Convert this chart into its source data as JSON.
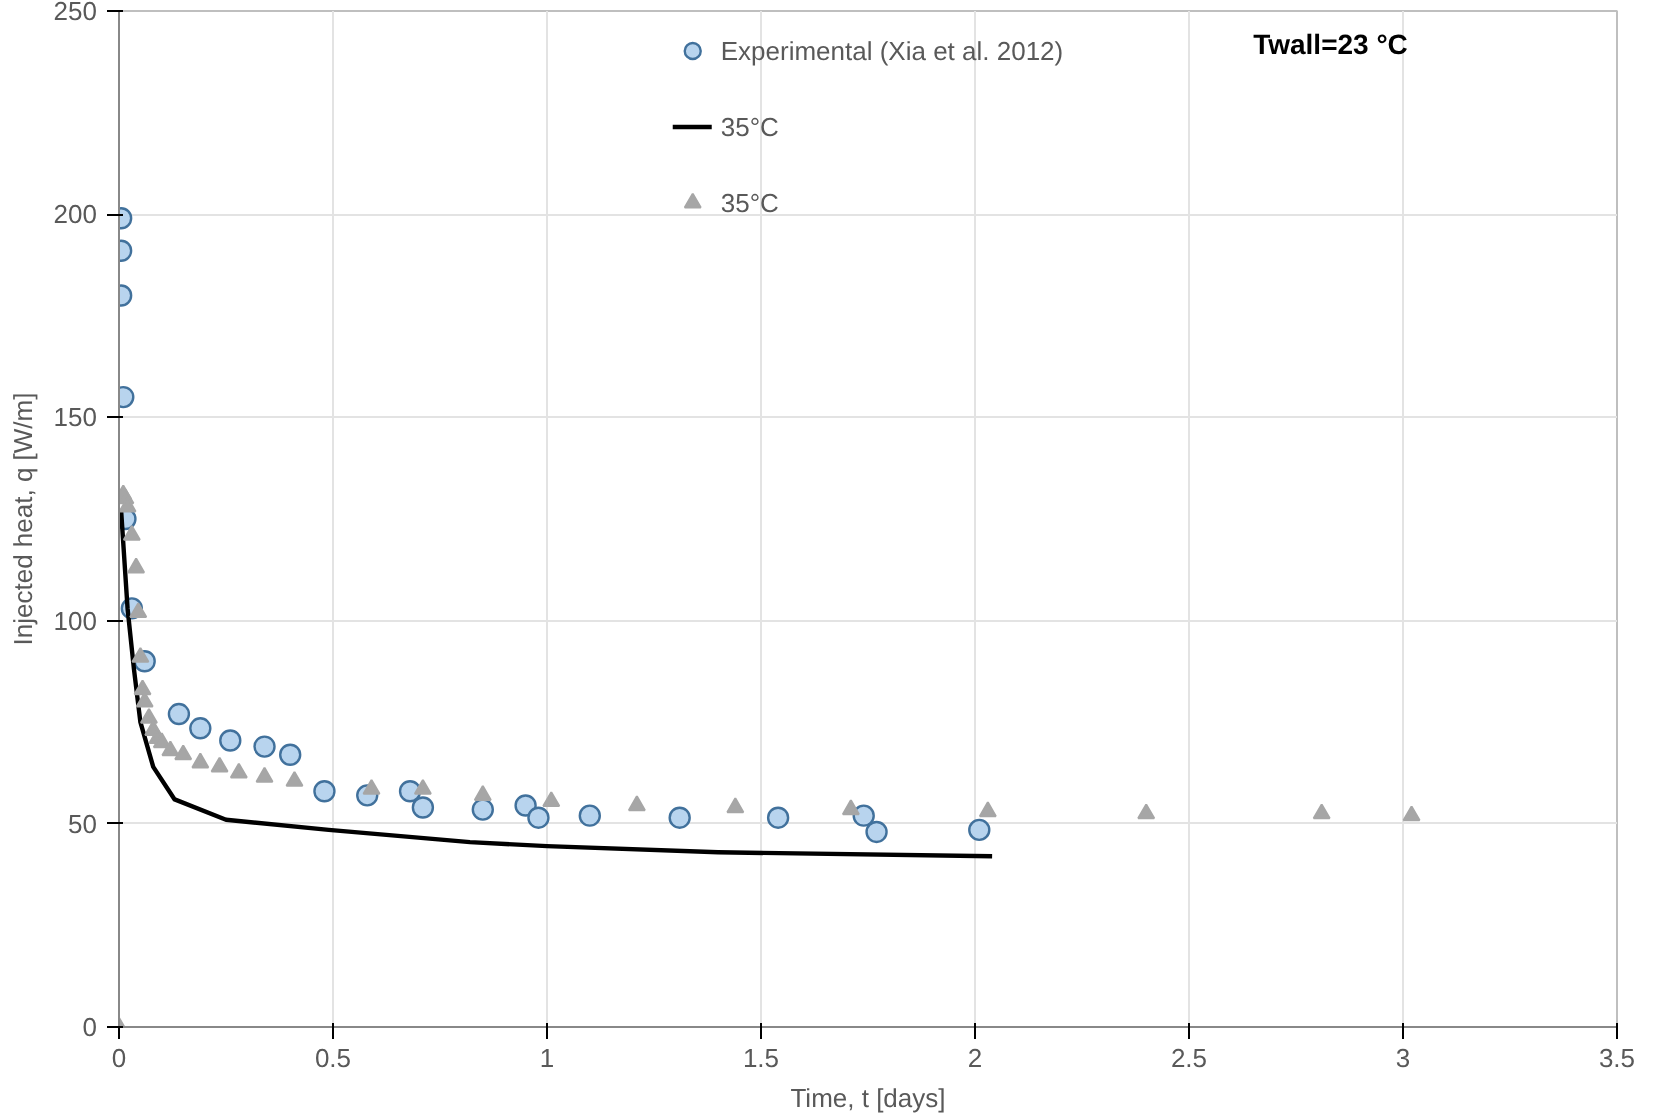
{
  "chart_data": {
    "type": "scatter",
    "xlabel": "Time, t [days]",
    "ylabel": "Injected heat, q [W/m]",
    "annotations": [
      "Twall=23 °C"
    ],
    "xlim": [
      0,
      3.5
    ],
    "ylim": [
      0,
      250
    ],
    "xticks": [
      0,
      0.5,
      1,
      1.5,
      2,
      2.5,
      3,
      3.5
    ],
    "yticks": [
      0,
      50,
      100,
      150,
      200,
      250
    ],
    "grid": true,
    "legend": "top",
    "series": [
      {
        "name": "Experimental (Xia et al. 2012)",
        "marker": "circle",
        "color": "#b8d4ee",
        "x": [
          0.005,
          0.005,
          0.005,
          0.01,
          0.015,
          0.03,
          0.06,
          0.14,
          0.19,
          0.26,
          0.34,
          0.4,
          0.48,
          0.58,
          0.68,
          0.71,
          0.85,
          0.95,
          0.98,
          1.1,
          1.31,
          1.54,
          1.74,
          1.77,
          2.01
        ],
        "values": [
          199,
          191,
          180,
          155,
          125,
          103,
          90,
          77,
          73.5,
          70.5,
          69,
          67,
          58,
          57,
          58,
          54,
          53.5,
          54.5,
          51.5,
          52,
          51.5,
          51.5,
          52,
          48,
          48.5
        ]
      },
      {
        "name": "35°C",
        "type": "line",
        "marker": "none",
        "line_style": "solid",
        "color": "#000000",
        "x": [
          0.005,
          0.02,
          0.035,
          0.05,
          0.08,
          0.13,
          0.25,
          0.49,
          0.82,
          1.0,
          1.4,
          2.04
        ],
        "values": [
          127,
          103,
          88,
          75,
          64,
          56,
          51,
          48.5,
          45.5,
          44.5,
          43,
          42
        ]
      },
      {
        "name": "35°C",
        "marker": "triangle",
        "color": "#a6a6a6",
        "x": [
          0,
          0.01,
          0.015,
          0.02,
          0.03,
          0.04,
          0.045,
          0.05,
          0.055,
          0.06,
          0.07,
          0.08,
          0.09,
          0.1,
          0.12,
          0.15,
          0.19,
          0.235,
          0.28,
          0.34,
          0.41,
          0.59,
          0.71,
          0.85,
          1.01,
          1.21,
          1.44,
          1.71,
          2.03,
          2.4,
          2.81,
          3.02
        ],
        "values": [
          0,
          131,
          130,
          128,
          121,
          113,
          102,
          91,
          83,
          80,
          76,
          73,
          71,
          70,
          68,
          67,
          65,
          64,
          62.5,
          61.5,
          60.5,
          58.5,
          58.5,
          57,
          55.5,
          54.5,
          54,
          53.5,
          53,
          52.5,
          52.5,
          52
        ]
      }
    ]
  }
}
